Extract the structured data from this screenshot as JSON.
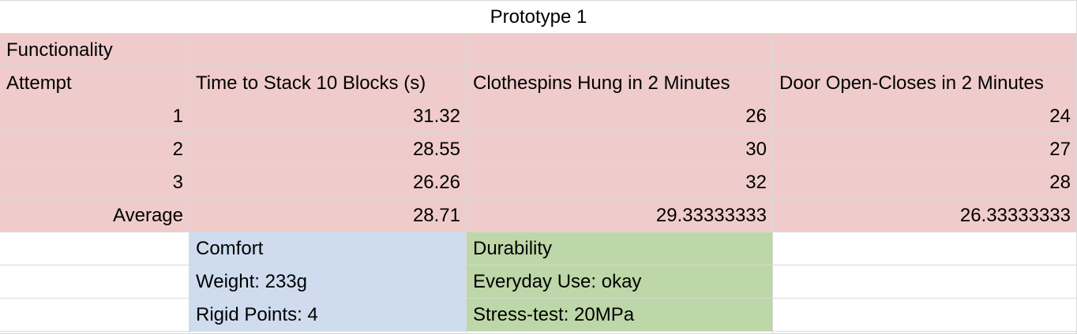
{
  "title": "Prototype 1",
  "functionality": {
    "section_label": "Functionality",
    "headers": [
      "Attempt",
      "Time to Stack 10 Blocks (s)",
      "Clothespins Hung in 2 Minutes",
      "Door Open-Closes in 2 Minutes"
    ],
    "rows": [
      [
        "1",
        "31.32",
        "26",
        "24"
      ],
      [
        "2",
        "28.55",
        "30",
        "27"
      ],
      [
        "3",
        "26.26",
        "32",
        "28"
      ],
      [
        "Average",
        "28.71",
        "29.33333333",
        "26.33333333"
      ]
    ]
  },
  "comfort": {
    "label": "Comfort",
    "items": [
      "Weight: 233g",
      "Rigid Points: 4"
    ]
  },
  "durability": {
    "label": "Durability",
    "items": [
      "Everyday Use: okay",
      "Stress-test: 20MPa"
    ]
  },
  "colors": {
    "functionality_bg": "#efcccb",
    "comfort_bg": "#cfdcef",
    "durability_bg": "#bdd7a8",
    "gridline": "#d9d9d9"
  }
}
